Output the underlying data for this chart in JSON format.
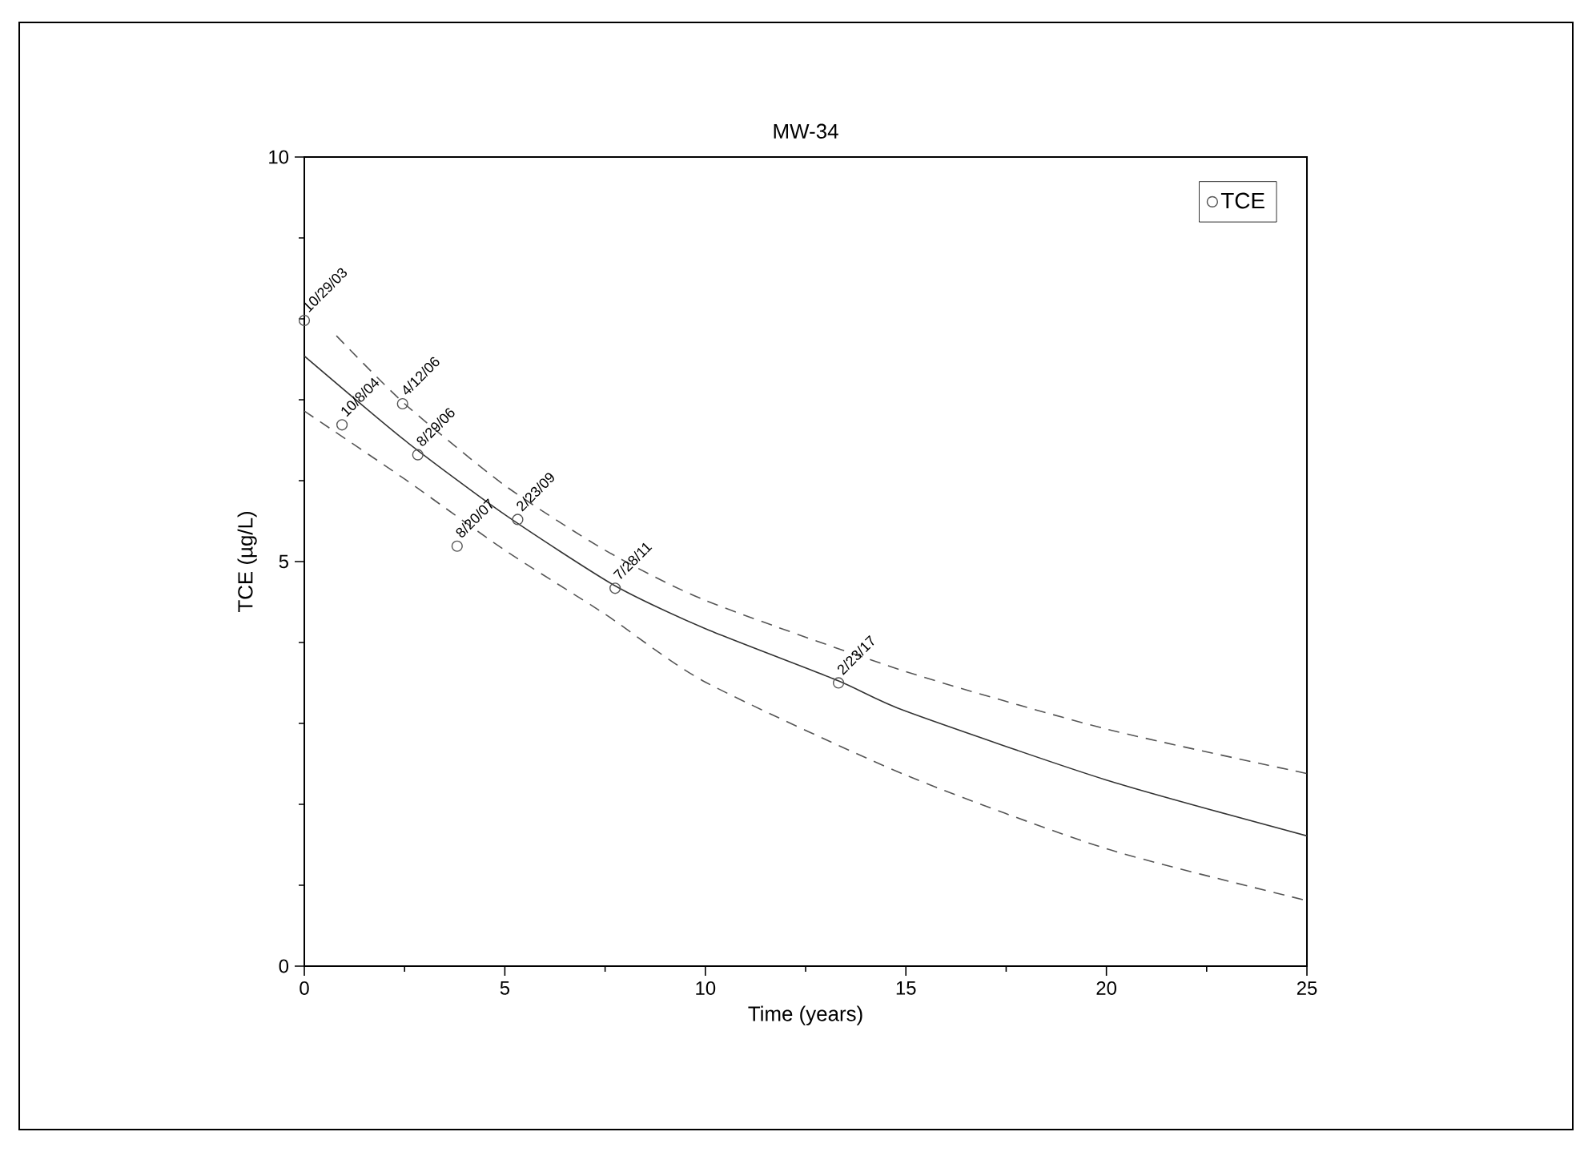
{
  "chart_data": {
    "type": "scatter",
    "title": "MW-34",
    "xlabel": "Time (years)",
    "ylabel": "TCE (µg/L)",
    "xlim": [
      0,
      25
    ],
    "ylim": [
      0,
      10
    ],
    "xticks": [
      0,
      5,
      10,
      15,
      20,
      25
    ],
    "yticks": [
      0,
      5,
      10
    ],
    "legend": "top right",
    "series": [
      {
        "name": "TCE",
        "marker": "circle",
        "color": "#555555",
        "x": [
          0,
          0.94,
          2.45,
          2.83,
          3.81,
          5.32,
          7.75,
          13.32
        ],
        "values": [
          7.98,
          6.69,
          6.95,
          6.32,
          5.19,
          5.52,
          4.67,
          3.5
        ]
      },
      {
        "type": "line",
        "line_style": "solid",
        "color": "#333333",
        "x": [
          0,
          2.5,
          5,
          7.75,
          10,
          13.3,
          15,
          20,
          25
        ],
        "values": [
          7.54,
          6.5,
          5.58,
          4.7,
          4.17,
          3.53,
          3.15,
          2.3,
          1.61
        ]
      },
      {
        "type": "line",
        "line_style": "dashed",
        "color": "#555555",
        "x": [
          0.8,
          2.5,
          5,
          7.5,
          10,
          15,
          20,
          25
        ],
        "values": [
          7.79,
          6.95,
          5.94,
          5.14,
          4.52,
          3.64,
          2.93,
          2.38
        ]
      },
      {
        "type": "line",
        "line_style": "dashed",
        "color": "#555555",
        "x": [
          0,
          2.5,
          5,
          7.5,
          10,
          15,
          20,
          25
        ],
        "values": [
          6.86,
          6.02,
          5.14,
          4.35,
          3.51,
          2.36,
          1.45,
          0.81
        ]
      }
    ],
    "annotations": [
      {
        "text": "10/29/03",
        "x": 0,
        "y": 7.98
      },
      {
        "text": "10/8/04",
        "x": 0.94,
        "y": 6.69
      },
      {
        "text": "4/12/06",
        "x": 2.45,
        "y": 6.95
      },
      {
        "text": "8/29/06",
        "x": 2.83,
        "y": 6.32
      },
      {
        "text": "8/20/07",
        "x": 3.81,
        "y": 5.19
      },
      {
        "text": "2/23/09",
        "x": 5.32,
        "y": 5.52
      },
      {
        "text": "7/28/11",
        "x": 7.75,
        "y": 4.67
      },
      {
        "text": "2/23/17",
        "x": 13.32,
        "y": 3.5
      }
    ]
  }
}
